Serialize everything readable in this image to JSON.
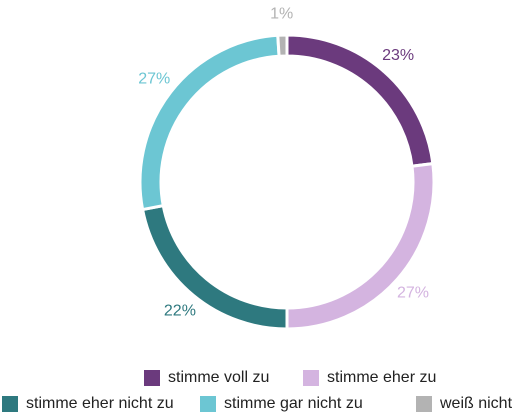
{
  "chart_data": {
    "type": "pie",
    "donut": true,
    "categories": [
      "stimme voll zu",
      "stimme eher zu",
      "stimme eher nicht zu",
      "stimme gar nicht zu",
      "weiß nicht"
    ],
    "values": [
      23,
      27,
      22,
      27,
      1
    ],
    "value_labels": [
      "23%",
      "27%",
      "22%",
      "27%",
      "1%"
    ],
    "colors": [
      "#6b3a7d",
      "#d4b4e0",
      "#2e797f",
      "#6cc6d3",
      "#b3b3b3"
    ]
  }
}
